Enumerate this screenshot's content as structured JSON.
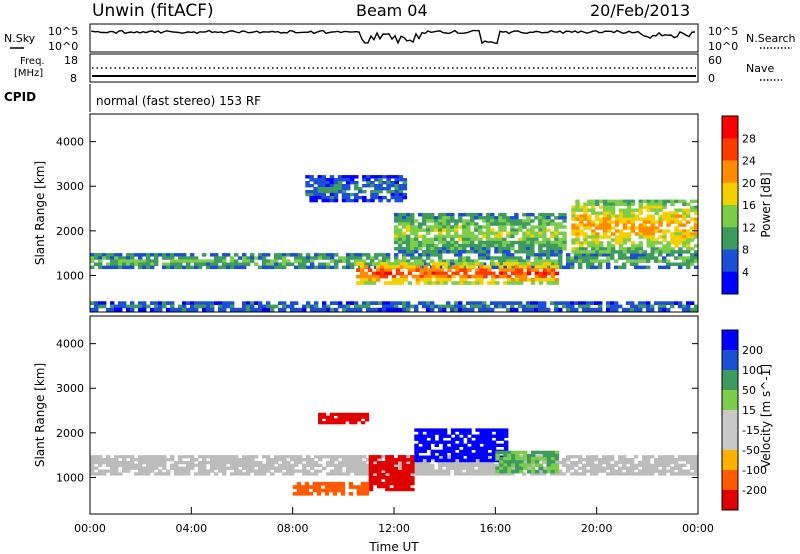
{
  "header": {
    "site": "Unwin (fitACF)",
    "beam": "Beam 04",
    "date": "20/Feb/2013"
  },
  "noise_panel": {
    "left_label": "N.Sky",
    "right_label": "N.Search",
    "left_ticks": [
      "10^5",
      "10^0"
    ],
    "right_ticks": [
      "10^5",
      "10^0"
    ]
  },
  "freq_panel": {
    "left_label_line1": "Freq.",
    "left_label_line2": "[MHz]",
    "right_label": "Nave",
    "left_ticks": [
      "18",
      "8"
    ],
    "right_ticks": [
      "60",
      "0"
    ]
  },
  "cpid": {
    "label": "CPID",
    "text": "normal (fast stereo) 153 RF"
  },
  "colors": {
    "power": [
      "#0000ff",
      "#1a4fd6",
      "#3d9b5e",
      "#7ccd4a",
      "#f5d000",
      "#ff8c00",
      "#ff3a00",
      "#ff0000"
    ],
    "velocity": [
      "#e00000",
      "#ff5a00",
      "#ffb000",
      "#c8c8c8",
      "#c8c8c8",
      "#7ccd4a",
      "#3d9b5e",
      "#1a4fd6",
      "#0000ff"
    ],
    "ground_scatter": "#bcbcbc"
  },
  "chart_data": [
    {
      "type": "heatmap",
      "name": "Power",
      "ylabel": "Slant Range [km]",
      "xlabel": "",
      "ylim": [
        180,
        4620
      ],
      "y_ticks": [
        "1000",
        "2000",
        "3000",
        "4000"
      ],
      "y_tick_values": [
        1000,
        2000,
        3000,
        4000
      ],
      "colorbar_label": "Power [dB]",
      "colorbar_ticks": [
        "4",
        "8",
        "12",
        "16",
        "20",
        "24",
        "28"
      ],
      "colorbar_range": [
        0,
        30
      ],
      "features": [
        {
          "t0": 0.0,
          "t1": 24.0,
          "r_lo": 1150,
          "r_hi": 1500,
          "level": 14
        },
        {
          "t0": 8.5,
          "t1": 12.5,
          "r_lo": 2650,
          "r_hi": 3250,
          "level": 8
        },
        {
          "t0": 10.5,
          "t1": 18.5,
          "r_lo": 800,
          "r_hi": 1300,
          "level": 28
        },
        {
          "t0": 12.0,
          "t1": 18.8,
          "r_lo": 1500,
          "r_hi": 2400,
          "level": 16
        },
        {
          "t0": 19.0,
          "t1": 24.0,
          "r_lo": 1500,
          "r_hi": 2700,
          "level": 22
        },
        {
          "t0": 0.0,
          "t1": 24.0,
          "r_lo": 200,
          "r_hi": 420,
          "level": 10
        }
      ]
    },
    {
      "type": "heatmap",
      "name": "Velocity",
      "ylabel": "Slant Range [km]",
      "xlabel": "Time UT",
      "ylim": [
        180,
        4620
      ],
      "y_ticks": [
        "1000",
        "2000",
        "3000",
        "4000"
      ],
      "y_tick_values": [
        1000,
        2000,
        3000,
        4000
      ],
      "colorbar_label": "Velocity [m s^-1]",
      "colorbar_ticks": [
        "200",
        "100",
        "50",
        "15",
        "-15",
        "-50",
        "-100",
        "-200"
      ],
      "x_ticks": [
        "00:00",
        "04:00",
        "08:00",
        "12:00",
        "16:00",
        "20:00",
        "00:00"
      ],
      "x_tick_values": [
        0,
        4,
        8,
        12,
        16,
        20,
        24
      ],
      "xlim": [
        0,
        24
      ],
      "features": [
        {
          "t0": 0.0,
          "t1": 24.0,
          "r_lo": 1050,
          "r_hi": 1500,
          "velocity": 0,
          "ground_scatter": true
        },
        {
          "t0": 11.0,
          "t1": 12.8,
          "r_lo": 700,
          "r_hi": 1500,
          "velocity": -200
        },
        {
          "t0": 8.0,
          "t1": 11.0,
          "r_lo": 600,
          "r_hi": 900,
          "velocity": -100
        },
        {
          "t0": 12.8,
          "t1": 16.5,
          "r_lo": 1350,
          "r_hi": 2100,
          "velocity": 200
        },
        {
          "t0": 16.0,
          "t1": 18.5,
          "r_lo": 1100,
          "r_hi": 1600,
          "velocity": 80
        },
        {
          "t0": 9.0,
          "t1": 11.0,
          "r_lo": 2200,
          "r_hi": 2450,
          "velocity": -200
        }
      ]
    }
  ]
}
